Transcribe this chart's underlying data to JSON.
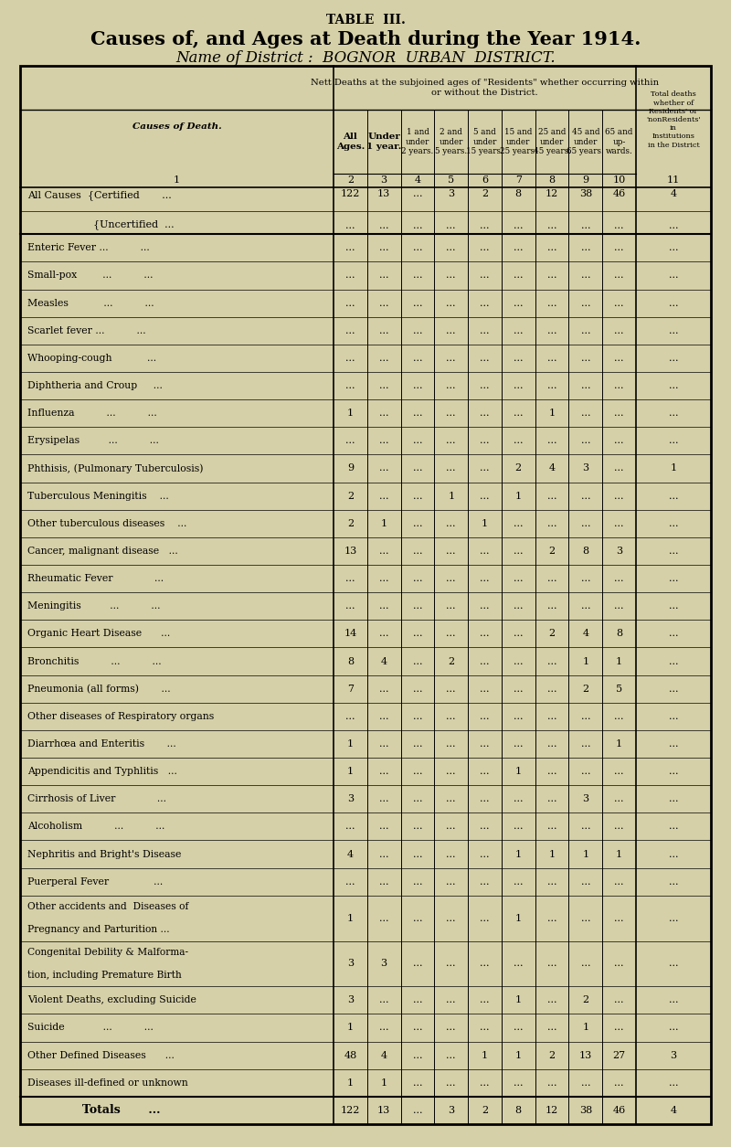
{
  "title1": "TABLE  III.",
  "title2": "Causes of, and Ages at Death during the Year 1914.",
  "title3": "Name of District :  BOGNOR  URBAN  DISTRICT.",
  "bg_color": "#d6d0a8",
  "header_span": "Nett Deaths at the subjoined ages of \"Residents\" whether occurring within\nor without the District.",
  "last_col_header": "Total deaths\nwhether of\nResidents' or\n'nonResidents'\nin\nInstitutions\nin the District",
  "col_headers": [
    "All\nAges.",
    "Under\n1 year.",
    "1 and\nunder\n2 years.",
    "2 and\nunder\n5 years.",
    "5 and\nunder\n15 years.",
    "15 and\nunder\n25 years.",
    "25 and\nunder\n45 years.",
    "45 and\nunder\n65 years.",
    "65 and\nup-\nwards."
  ],
  "col_nums": [
    "2",
    "3",
    "4",
    "5",
    "6",
    "7",
    "8",
    "9",
    "10",
    "11"
  ],
  "cause_label": "Causes of Death.",
  "rows": [
    {
      "label": "All Causes",
      "type": "allcauses_certified",
      "data": [
        "122",
        "13",
        "...",
        "3",
        "2",
        "8",
        "12",
        "38",
        "46",
        "4"
      ]
    },
    {
      "label": "Uncertified",
      "type": "allcauses_uncertified",
      "data": [
        "...",
        "...",
        "...",
        "...",
        "...",
        "...",
        "...",
        "...",
        "...",
        "..."
      ]
    },
    {
      "label": "Enteric Fever ...",
      "type": "separator_after",
      "data": [
        "...",
        "...",
        "...",
        "...",
        "...",
        "...",
        "...",
        "...",
        "...",
        "..."
      ]
    },
    {
      "label": "Small-pox",
      "type": "normal",
      "data": [
        "...",
        "...",
        "...",
        "...",
        "...",
        "...",
        "...",
        "...",
        "...",
        "..."
      ]
    },
    {
      "label": "Measles",
      "type": "normal",
      "data": [
        "...",
        "...",
        "...",
        "...",
        "...",
        "...",
        "...",
        "...",
        "...",
        "..."
      ]
    },
    {
      "label": "Scarlet fever ...",
      "type": "normal",
      "data": [
        "...",
        "...",
        "...",
        "...",
        "...",
        "...",
        "...",
        "...",
        "...",
        "..."
      ]
    },
    {
      "label": "Whooping-cough",
      "type": "normal",
      "data": [
        "...",
        "...",
        "...",
        "...",
        "...",
        "...",
        "...",
        "...",
        "...",
        "..."
      ]
    },
    {
      "label": "Diphtheria and Croup",
      "type": "normal",
      "data": [
        "...",
        "...",
        "...",
        "...",
        "...",
        "...",
        "...",
        "...",
        "...",
        "..."
      ]
    },
    {
      "label": "Influenza",
      "type": "normal",
      "data": [
        "1",
        "...",
        "...",
        "...",
        "...",
        "...",
        "1",
        "...",
        "...",
        "..."
      ]
    },
    {
      "label": "Erysipelas",
      "type": "normal",
      "data": [
        "...",
        "...",
        "...",
        "...",
        "...",
        "...",
        "...",
        "...",
        "...",
        "..."
      ]
    },
    {
      "label": "Phthisis, (Pulmonary Tuberculosis)",
      "type": "normal",
      "data": [
        "9",
        "...",
        "...",
        "...",
        "...",
        "2",
        "4",
        "3",
        "...",
        "1"
      ]
    },
    {
      "label": "Tuberculous Meningitis",
      "type": "normal",
      "data": [
        "2",
        "...",
        "...",
        "1",
        "...",
        "1",
        "...",
        "...",
        "...",
        "..."
      ]
    },
    {
      "label": "Other tuberculous diseases",
      "type": "normal",
      "data": [
        "2",
        "1",
        "...",
        "...",
        "1",
        "...",
        "...",
        "...",
        "...",
        "..."
      ]
    },
    {
      "label": "Cancer, malignant disease",
      "type": "normal",
      "data": [
        "13",
        "...",
        "...",
        "...",
        "...",
        "...",
        "2",
        "8",
        "3",
        "..."
      ]
    },
    {
      "label": "Rheumatic Fever",
      "type": "normal",
      "data": [
        "...",
        "...",
        "...",
        "...",
        "...",
        "...",
        "...",
        "...",
        "...",
        "..."
      ]
    },
    {
      "label": "Meningitis",
      "type": "normal",
      "data": [
        "...",
        "...",
        "...",
        "...",
        "...",
        "...",
        "...",
        "...",
        "...",
        "..."
      ]
    },
    {
      "label": "Organic Heart Disease",
      "type": "normal",
      "data": [
        "14",
        "...",
        "...",
        "...",
        "...",
        "...",
        "2",
        "4",
        "8",
        "..."
      ]
    },
    {
      "label": "Bronchitis",
      "type": "normal",
      "data": [
        "8",
        "4",
        "...",
        "2",
        "...",
        "...",
        "...",
        "1",
        "1",
        "..."
      ]
    },
    {
      "label": "Pneumonia (all forms)",
      "type": "normal",
      "data": [
        "7",
        "...",
        "...",
        "...",
        "...",
        "...",
        "...",
        "2",
        "5",
        "..."
      ]
    },
    {
      "label": "Other diseases of Respiratory organs",
      "type": "normal",
      "data": [
        "...",
        "...",
        "...",
        "...",
        "...",
        "...",
        "...",
        "...",
        "...",
        "..."
      ]
    },
    {
      "label": "Diarrhœa and Enteritis",
      "type": "normal",
      "data": [
        "1",
        "...",
        "...",
        "...",
        "...",
        "...",
        "...",
        "...",
        "1",
        "..."
      ]
    },
    {
      "label": "Appendicitis and Typhlitis",
      "type": "normal",
      "data": [
        "1",
        "...",
        "...",
        "...",
        "...",
        "1",
        "...",
        "...",
        "...",
        "..."
      ]
    },
    {
      "label": "Cirrhosis of Liver",
      "type": "normal",
      "data": [
        "3",
        "...",
        "...",
        "...",
        "...",
        "...",
        "...",
        "3",
        "...",
        "..."
      ]
    },
    {
      "label": "Alcoholism",
      "type": "normal",
      "data": [
        "...",
        "...",
        "...",
        "...",
        "...",
        "...",
        "...",
        "...",
        "...",
        "..."
      ]
    },
    {
      "label": "Nephritis and Bright's Disease",
      "type": "normal",
      "data": [
        "4",
        "...",
        "...",
        "...",
        "...",
        "1",
        "1",
        "1",
        "1",
        "..."
      ]
    },
    {
      "label": "Puerperal Fever",
      "type": "normal",
      "data": [
        "...",
        "...",
        "...",
        "...",
        "...",
        "...",
        "...",
        "...",
        "...",
        "..."
      ]
    },
    {
      "label": "Other accidents and  Diseases of\n    Pregnancy and Parturition ...",
      "type": "multiline",
      "data": [
        "1",
        "...",
        "...",
        "...",
        "...",
        "1",
        "...",
        "...",
        "...",
        "..."
      ]
    },
    {
      "label": "Congenital Debility & Malforma-\n    tion, including Premature Birth",
      "type": "multiline",
      "data": [
        "3",
        "3",
        "...",
        "...",
        "...",
        "...",
        "...",
        "...",
        "...",
        "..."
      ]
    },
    {
      "label": "Violent Deaths, excluding Suicide",
      "type": "normal",
      "data": [
        "3",
        "...",
        "...",
        "...",
        "...",
        "1",
        "...",
        "2",
        "...",
        "..."
      ]
    },
    {
      "label": "Suicide",
      "type": "normal",
      "data": [
        "1",
        "...",
        "...",
        "...",
        "...",
        "...",
        "...",
        "1",
        "...",
        "..."
      ]
    },
    {
      "label": "Other Defined Diseases",
      "type": "normal",
      "data": [
        "48",
        "4",
        "...",
        "...",
        "1",
        "1",
        "2",
        "13",
        "27",
        "3"
      ]
    },
    {
      "label": "Diseases ill-defined or unknown",
      "type": "normal",
      "data": [
        "1",
        "1",
        "...",
        "...",
        "...",
        "...",
        "...",
        "...",
        "...",
        "..."
      ]
    },
    {
      "label": "Totals",
      "type": "totals",
      "data": [
        "122",
        "13",
        "...",
        "3",
        "2",
        "8",
        "12",
        "38",
        "46",
        "4"
      ]
    }
  ],
  "dots_suffix": {
    "Enteric Fever ...": "...",
    "Small-pox": "...          ...",
    "Measles": "...          ...",
    "Scarlet fever ...": "...",
    "Whooping-cough": "          ...",
    "Diphtheria and Croup": "    ...",
    "Influenza": "       ...          ...",
    "Erysipelas": "      ...          ...",
    "Tuberculous Meningitis": "   ...",
    "Other tuberculous diseases": "  ...",
    "Cancer, malignant disease": "   ...",
    "Rheumatic Fever": "           ...",
    "Meningitis": "      ...          ...",
    "Organic Heart Disease": "     ...",
    "Bronchitis": "       ...          ...",
    "Pneumonia (all forms)": "      ...",
    "Diarrhœa and Enteritis": "      ...",
    "Appendicitis and Typhlitis": "  ...",
    "Cirrhosis of Liver": "           ...",
    "Alcoholism": "      ...          ...",
    "Violent Deaths, excluding Suicide": "",
    "Suicide": "          ...          ...",
    "Other Defined Diseases": "     ...",
    "Diseases ill-defined or unknown": ""
  }
}
